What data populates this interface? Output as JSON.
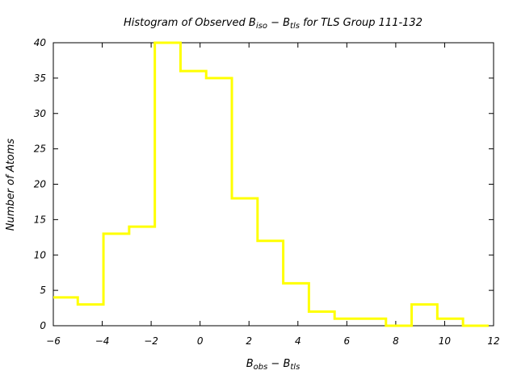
{
  "chart_data": {
    "type": "bar",
    "style": "step-histogram",
    "title": {
      "prefix": "Histogram of Observed B",
      "sub1": "iso",
      "mid": " − B",
      "sub2": "tls",
      "suffix": " for TLS Group 111-132"
    },
    "xlabel": {
      "main1": "B",
      "sub1": "obs",
      "mid": " − B",
      "sub2": "tls"
    },
    "ylabel": "Number of Atoms",
    "xlim": [
      -6,
      12
    ],
    "ylim": [
      0,
      40
    ],
    "xticks": [
      -6,
      -4,
      -2,
      0,
      2,
      4,
      6,
      8,
      10,
      12
    ],
    "yticks": [
      0,
      5,
      10,
      15,
      20,
      25,
      30,
      35,
      40
    ],
    "bin_edges": [
      -6.0,
      -5.0,
      -3.95,
      -2.9,
      -1.85,
      -0.8,
      0.25,
      1.3,
      2.35,
      3.4,
      4.45,
      5.5,
      6.55,
      7.6,
      8.65,
      9.7,
      10.75,
      11.8
    ],
    "values": [
      4,
      3,
      13,
      14,
      40,
      36,
      35,
      18,
      12,
      6,
      2,
      1,
      1,
      0,
      3,
      1,
      0
    ],
    "color": "#ffff00",
    "grid": false,
    "legend": "none"
  }
}
